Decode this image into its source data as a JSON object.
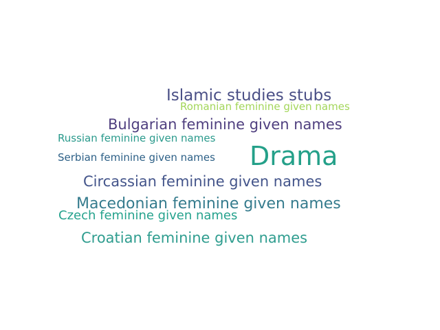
{
  "word_cloud": {
    "words": [
      {
        "text": "Islamic studies stubs",
        "color": "#4a4f86"
      },
      {
        "text": "Romanian feminine given names",
        "color": "#a3d65a"
      },
      {
        "text": "Bulgarian feminine given names",
        "color": "#4f3f7f"
      },
      {
        "text": "Russian feminine given names",
        "color": "#2a9a8c"
      },
      {
        "text": "Drama",
        "color": "#24a089"
      },
      {
        "text": "Serbian feminine given names",
        "color": "#2c5f86"
      },
      {
        "text": "Circassian feminine given names",
        "color": "#43548a"
      },
      {
        "text": "Macedonian feminine given names",
        "color": "#357b8d"
      },
      {
        "text": "Czech feminine given names",
        "color": "#25a28d"
      },
      {
        "text": "Croatian feminine given names",
        "color": "#2f9d8f"
      }
    ]
  }
}
